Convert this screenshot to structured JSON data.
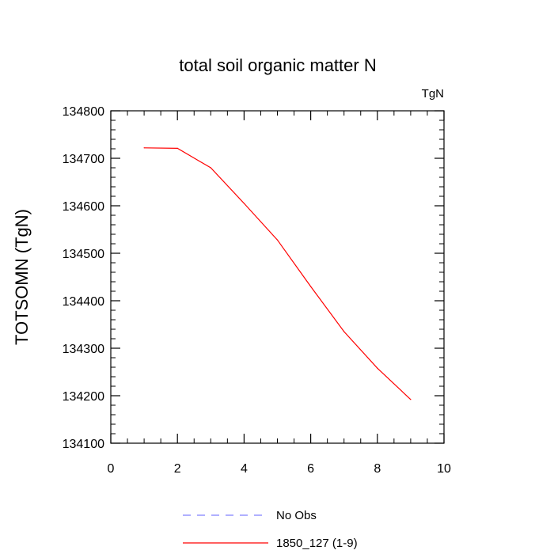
{
  "chart_data": {
    "type": "line",
    "title": "total soil organic matter N",
    "units": "TgN",
    "xlabel": "",
    "ylabel": "TOTSOMN  (TgN)",
    "xlim": [
      0,
      10
    ],
    "ylim": [
      134100,
      134800
    ],
    "x_ticks": [
      0,
      2,
      4,
      6,
      8,
      10
    ],
    "x_tick_labels": [
      "0",
      "2",
      "4",
      "6",
      "8",
      "10"
    ],
    "y_ticks": [
      134100,
      134200,
      134300,
      134400,
      134500,
      134600,
      134700,
      134800
    ],
    "y_tick_labels": [
      "134100",
      "134200",
      "134300",
      "134400",
      "134500",
      "134600",
      "134700",
      "134800"
    ],
    "grid": false,
    "legend_position": "bottom",
    "series": [
      {
        "name": "No Obs",
        "color": "#8080ff",
        "dash": "dashed",
        "x": [],
        "values": []
      },
      {
        "name": "1850_127 (1-9)",
        "color": "#ff0000",
        "dash": "solid",
        "x": [
          1,
          2,
          3,
          4,
          5,
          6,
          7,
          8,
          9
        ],
        "values": [
          134722,
          134721,
          134680,
          134605,
          134528,
          134430,
          134335,
          134258,
          134192
        ]
      }
    ]
  }
}
